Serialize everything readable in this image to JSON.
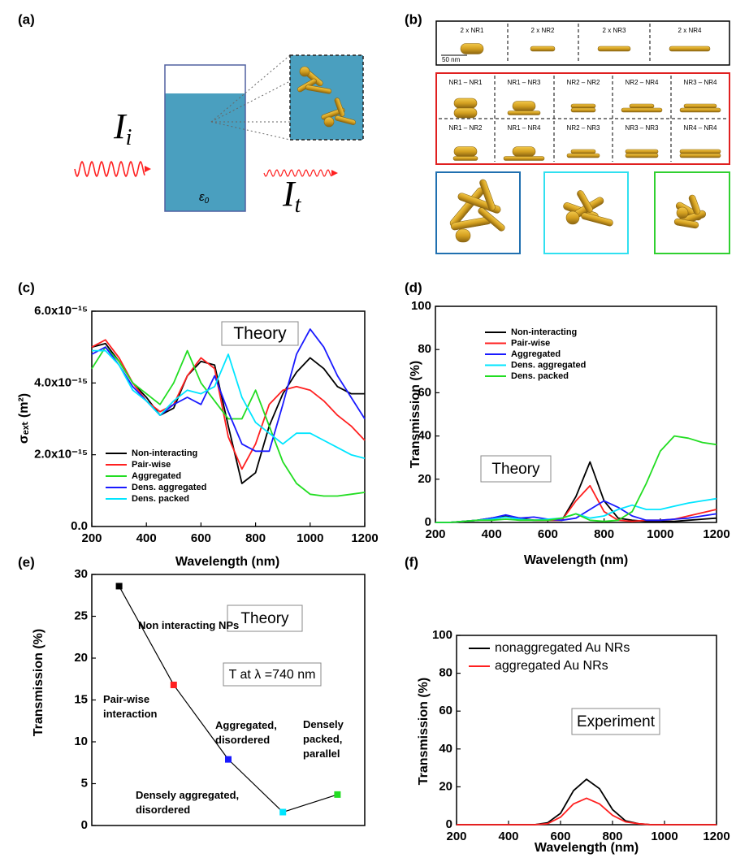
{
  "figure_a": {
    "label": "(a)",
    "incident": {
      "symbol": "I",
      "sub": "i"
    },
    "transmitted": {
      "symbol": "I",
      "sub": "t"
    },
    "medium": {
      "symbol": "ε",
      "sub": "0"
    }
  },
  "figure_b": {
    "label": "(b)",
    "singles": [
      "2 x NR1",
      "2 x NR2",
      "2 x NR3",
      "2 x NR4"
    ],
    "scale": "50 nm",
    "pairs": [
      [
        "NR1 – NR1",
        "NR1 – NR3",
        "NR2 – NR2",
        "NR2 – NR4",
        "NR3 – NR4"
      ],
      [
        "NR1 – NR2",
        "NR1 – NR4",
        "NR2 – NR3",
        "NR3 – NR3",
        "NR4 – NR4"
      ]
    ]
  },
  "chart_data": [
    {
      "type": "line",
      "panel_label": "(c)",
      "x_label": "Wavelength (nm)",
      "y_label": "σₑₓₜ (m²)",
      "xlim": [
        200,
        1200
      ],
      "xticks": [
        200,
        400,
        600,
        800,
        1000,
        1200
      ],
      "ylim": [
        0,
        6e-15
      ],
      "yticks": [
        {
          "value": 0,
          "label": "0.0"
        },
        {
          "value": 2e-15,
          "label": "2.0x10⁻¹⁵"
        },
        {
          "value": 4e-15,
          "label": "4.0x10⁻¹⁵"
        },
        {
          "value": 6e-15,
          "label": "6.0x10⁻¹⁵"
        }
      ],
      "annotations": [
        "Theory"
      ],
      "x": [
        200,
        250,
        300,
        350,
        400,
        450,
        500,
        550,
        600,
        650,
        700,
        750,
        800,
        850,
        900,
        950,
        1000,
        1050,
        1100,
        1150,
        1200
      ],
      "series": [
        {
          "name": "Non-interacting",
          "color": "#000000",
          "values": [
            5e-15,
            5.1e-15,
            4.6e-15,
            4e-15,
            3.6e-15,
            3.1e-15,
            3.3e-15,
            4.2e-15,
            4.6e-15,
            4.5e-15,
            2.8e-15,
            1.2e-15,
            1.5e-15,
            2.8e-15,
            3.7e-15,
            4.3e-15,
            4.7e-15,
            4.4e-15,
            3.9e-15,
            3.7e-15,
            3.7e-15
          ]
        },
        {
          "name": "Pair-wise",
          "color": "#ff2020",
          "values": [
            5e-15,
            5.2e-15,
            4.7e-15,
            4e-15,
            3.5e-15,
            3.2e-15,
            3.4e-15,
            4.2e-15,
            4.7e-15,
            4.4e-15,
            2.5e-15,
            1.6e-15,
            2.3e-15,
            3.4e-15,
            3.8e-15,
            3.9e-15,
            3.8e-15,
            3.5e-15,
            3.1e-15,
            2.8e-15,
            2.4e-15
          ]
        },
        {
          "name": "Aggregated",
          "color": "#22dd22",
          "values": [
            4.4e-15,
            5e-15,
            4.6e-15,
            4e-15,
            3.7e-15,
            3.4e-15,
            4e-15,
            4.9e-15,
            4e-15,
            3.5e-15,
            3e-15,
            3e-15,
            3.8e-15,
            2.8e-15,
            1.8e-15,
            1.2e-15,
            9e-16,
            8.5e-16,
            8.5e-16,
            9e-16,
            9.5e-16
          ]
        },
        {
          "name": "Dens. aggregated",
          "color": "#1a1aff",
          "values": [
            4.8e-15,
            5e-15,
            4.5e-15,
            3.9e-15,
            3.5e-15,
            3.1e-15,
            3.4e-15,
            3.6e-15,
            3.4e-15,
            4.2e-15,
            3.2e-15,
            2.3e-15,
            2.1e-15,
            2.1e-15,
            3.4e-15,
            4.8e-15,
            5.5e-15,
            5e-15,
            4.2e-15,
            3.6e-15,
            3e-15
          ]
        },
        {
          "name": "Dens. packed",
          "color": "#00e5ff",
          "values": [
            4.9e-15,
            4.9e-15,
            4.5e-15,
            3.8e-15,
            3.5e-15,
            3.1e-15,
            3.5e-15,
            3.8e-15,
            3.7e-15,
            3.9e-15,
            4.8e-15,
            3.6e-15,
            2.9e-15,
            2.6e-15,
            2.3e-15,
            2.6e-15,
            2.6e-15,
            2.4e-15,
            2.2e-15,
            2e-15,
            1.9e-15
          ]
        }
      ]
    },
    {
      "type": "line",
      "panel_label": "(d)",
      "x_label": "Wavelength (nm)",
      "y_label": "Transmission (%)",
      "xlim": [
        200,
        1200
      ],
      "xticks": [
        200,
        400,
        600,
        800,
        1000,
        1200
      ],
      "ylim": [
        0,
        100
      ],
      "yticks": [
        0,
        20,
        40,
        60,
        80,
        100
      ],
      "annotations": [
        "Theory"
      ],
      "x": [
        200,
        250,
        300,
        350,
        400,
        450,
        500,
        550,
        600,
        650,
        700,
        750,
        800,
        850,
        900,
        950,
        1000,
        1050,
        1100,
        1150,
        1200
      ],
      "series": [
        {
          "name": "Non-interacting",
          "color": "#000000",
          "values": [
            0,
            0,
            0.5,
            1,
            2,
            3,
            2,
            1,
            1,
            1,
            12,
            28,
            10,
            2,
            1,
            0.5,
            0.5,
            0.5,
            1,
            1.5,
            2
          ]
        },
        {
          "name": "Pair-wise",
          "color": "#ff2020",
          "values": [
            0,
            0,
            0.5,
            1,
            1.5,
            2.5,
            1.5,
            1,
            1,
            1,
            10,
            17,
            5,
            1,
            0.5,
            1,
            1,
            1.5,
            3,
            4.5,
            6
          ]
        },
        {
          "name": "Aggregated",
          "color": "#1a1aff",
          "values": [
            0,
            0,
            0.5,
            1,
            2,
            3.5,
            2,
            2.5,
            1.5,
            1,
            2,
            6,
            10,
            7,
            3,
            1,
            1,
            1.5,
            2,
            3,
            4
          ]
        },
        {
          "name": "Dens. aggregated",
          "color": "#00e5ff",
          "values": [
            0,
            0,
            0.5,
            1,
            1.5,
            2.5,
            1.5,
            1,
            1.5,
            2,
            4,
            2,
            3,
            6,
            8,
            6,
            6,
            7.5,
            9,
            10,
            11
          ]
        },
        {
          "name": "Dens. packed",
          "color": "#22dd22",
          "values": [
            0,
            0,
            0.5,
            1,
            1,
            1.5,
            1,
            1,
            1,
            2,
            4,
            1,
            0.5,
            1,
            5,
            18,
            33,
            40,
            39,
            37,
            36
          ]
        }
      ]
    },
    {
      "type": "scatter",
      "panel_label": "(e)",
      "y_label": "Transmission (%)",
      "ylim": [
        0,
        30
      ],
      "yticks": [
        0,
        5,
        10,
        15,
        20,
        25,
        30
      ],
      "annotations": [
        "Theory",
        "T at λ =740 nm"
      ],
      "categories": [
        "Non interacting NPs",
        "Pair-wise\ninteraction",
        "Aggregated,\ndisordered",
        "Densely aggregated,\ndisordered",
        "Densely\npacked,\nparallel"
      ],
      "values": [
        28.6,
        16.8,
        7.9,
        1.6,
        3.7
      ],
      "point_colors": [
        "#000000",
        "#ff2020",
        "#1a1aff",
        "#00e5ff",
        "#22dd22"
      ],
      "line_color": "#000000"
    },
    {
      "type": "line",
      "panel_label": "(f)",
      "x_label": "Wavelength (nm)",
      "y_label": "Transmission (%)",
      "xlim": [
        200,
        1200
      ],
      "xticks": [
        200,
        400,
        600,
        800,
        1000,
        1200
      ],
      "ylim": [
        0,
        100
      ],
      "yticks": [
        0,
        20,
        40,
        60,
        80,
        100
      ],
      "annotations": [
        "Experiment"
      ],
      "x": [
        200,
        250,
        300,
        350,
        400,
        450,
        500,
        550,
        600,
        650,
        700,
        750,
        800,
        850,
        900,
        950,
        1000,
        1050,
        1100,
        1150,
        1200
      ],
      "series": [
        {
          "name": "nonaggregated Au NRs",
          "color": "#000000",
          "values": [
            0,
            0,
            0,
            0,
            0,
            0,
            0,
            1,
            6,
            18,
            24,
            19,
            8,
            2,
            0.5,
            0,
            0,
            0,
            0,
            0,
            0
          ]
        },
        {
          "name": "aggregated Au NRs",
          "color": "#ff2020",
          "values": [
            0,
            0,
            0,
            0,
            0,
            0,
            0,
            0.5,
            4,
            11,
            14,
            11,
            5,
            1.5,
            0.5,
            0,
            0,
            0,
            0,
            0,
            0
          ]
        }
      ]
    }
  ]
}
